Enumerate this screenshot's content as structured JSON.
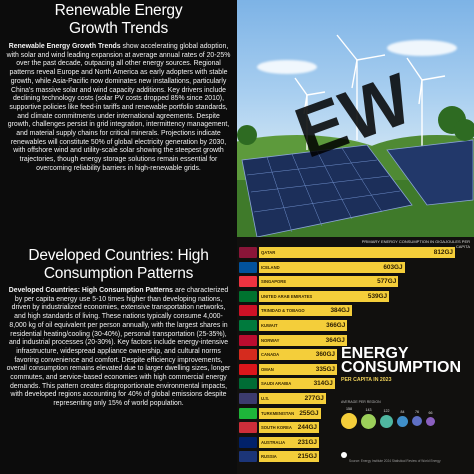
{
  "top_left": {
    "title_line1": "Renewable Energy",
    "title_line2": "Growth Trends",
    "body_bold": "Renewable Energy Growth Trends",
    "body": "show accelerating global adoption, with solar and wind leading expansion at average annual rates of 20-25% over the past decade, outpacing all other energy sources. Regional patterns reveal Europe and North America as early adopters with stable growth, while Asia-Pacific now dominates new installations, particularly China's massive solar and wind capacity additions. Key drivers include declining technology costs (solar PV costs dropped 85% since 2010), supportive policies like feed-in tariffs and renewable portfolio standards, and climate commitments under international agreements. Despite growth, challenges persist in grid integration, intermittency management, and material supply chains for critical minerals. Projections indicate renewables will constitute 50% of global electricity generation by 2030, with offshore wind and utility-scale solar showing the steepest growth trajectories, though energy storage solutions remain essential for overcoming reliability barriers in high-renewable grids."
  },
  "bottom_left": {
    "title_line1": "Developed Countries: High",
    "title_line2": "Consumption Patterns",
    "body_bold": "Developed Countries: High Consumption Patterns",
    "body": "are characterized by per capita energy use 5-10 times higher than developing nations, driven by industrialized economies, extensive transportation networks, and high standards of living. These nations typically consume 4,000-8,000 kg of oil equivalent per person annually, with the largest shares in residential heating/cooling (30-40%), personal transportation (25-35%), and industrial processes (20-30%). Key factors include energy-intensive infrastructure, widespread appliance ownership, and cultural norms favoring convenience and comfort. Despite efficiency improvements, overall consumption remains elevated due to larger dwelling sizes, longer commutes, and service-based economies with high commercial energy demands. This pattern creates disproportionate environmental impacts, with developed regions accounting for 40% of global emissions despite representing only 15% of world population."
  },
  "top_right": {
    "watermark": "EW"
  },
  "chart": {
    "title_line1": "ENERGY",
    "title_line2": "CONSUMPTION",
    "subtitle": "PER CAPITA IN 2023",
    "header": "PRIMARY ENERGY CONSUMPTION IN GIGAJOULES PER CAPITA",
    "avg_label": "AVERAGE PER REGION",
    "source": "Source: Energy Institute 2024 Statistical Review of World Energy"
  },
  "chart_data": {
    "type": "bar",
    "categories": [
      "QATAR",
      "ICELAND",
      "SINGAPORE",
      "UNITED ARAB EMIRATES",
      "TRINIDAD & TOBAGO",
      "KUWAIT",
      "NORWAY",
      "CANADA",
      "OMAN",
      "SAUDI ARABIA",
      "U.S.",
      "TURKMENISTAN",
      "SOUTH KOREA",
      "AUSTRALIA",
      "RUSSIA"
    ],
    "values": [
      812,
      603,
      577,
      539,
      384,
      366,
      364,
      360,
      335,
      314,
      277,
      255,
      244,
      231,
      215
    ],
    "value_labels": [
      "812GJ",
      "603GJ",
      "577GJ",
      "539GJ",
      "384GJ",
      "366GJ",
      "364GJ",
      "360GJ",
      "335GJ",
      "314GJ",
      "277GJ",
      "255GJ",
      "244GJ",
      "231GJ",
      "215GJ"
    ],
    "bar_color": "#f4ce3a",
    "region_averages": [
      "158",
      "143",
      "122",
      "84",
      "76",
      "66"
    ]
  }
}
